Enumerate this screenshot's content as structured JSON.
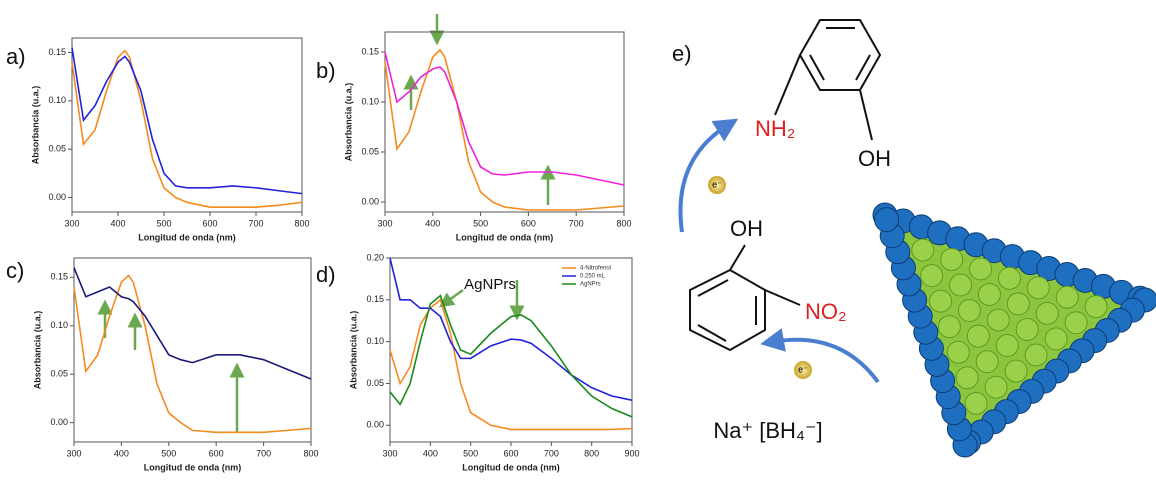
{
  "chart_data": [
    {
      "type": "line",
      "panel_label": "a)",
      "x_label": "Longitud de onda (nm)",
      "y_label": "Absorbancia (u.a.)",
      "x": [
        300,
        325,
        350,
        375,
        400,
        415,
        425,
        450,
        475,
        500,
        525,
        550,
        600,
        650,
        700,
        750,
        800
      ],
      "series": [
        {
          "color": "#f58a1f",
          "values": [
            0.14,
            0.055,
            0.07,
            0.11,
            0.145,
            0.152,
            0.145,
            0.1,
            0.04,
            0.01,
            0.0,
            -0.005,
            -0.01,
            -0.01,
            -0.01,
            -0.008,
            -0.005
          ]
        },
        {
          "color": "#2222dd",
          "values": [
            0.155,
            0.08,
            0.095,
            0.12,
            0.14,
            0.146,
            0.14,
            0.11,
            0.06,
            0.025,
            0.012,
            0.01,
            0.01,
            0.012,
            0.01,
            0.007,
            0.004
          ]
        }
      ],
      "xlim": [
        300,
        800
      ],
      "ylim": [
        -0.015,
        0.165
      ],
      "xticks": [
        300,
        400,
        500,
        600,
        700,
        800
      ],
      "yticks": [
        {
          "value": 0,
          "label": "0.00"
        },
        {
          "value": 0.05,
          "label": "0.05"
        },
        {
          "value": 0.1,
          "label": "0.10"
        },
        {
          "value": 0.15,
          "label": "0.15"
        }
      ]
    },
    {
      "type": "line",
      "panel_label": "b)",
      "x_label": "Longitud de onda (nm)",
      "y_label": "Absorbancia (u.a.)",
      "x": [
        300,
        325,
        350,
        375,
        400,
        415,
        425,
        450,
        475,
        500,
        525,
        550,
        600,
        650,
        700,
        750,
        800
      ],
      "series": [
        {
          "color": "#f58a1f",
          "values": [
            0.14,
            0.053,
            0.07,
            0.11,
            0.145,
            0.152,
            0.145,
            0.1,
            0.04,
            0.01,
            0.0,
            -0.005,
            -0.008,
            -0.008,
            -0.008,
            -0.006,
            -0.004
          ]
        },
        {
          "color": "#ee22dd",
          "values": [
            0.15,
            0.1,
            0.11,
            0.125,
            0.133,
            0.135,
            0.13,
            0.1,
            0.06,
            0.035,
            0.028,
            0.027,
            0.03,
            0.03,
            0.027,
            0.022,
            0.017
          ]
        }
      ],
      "xlim": [
        300,
        800
      ],
      "ylim": [
        -0.01,
        0.17
      ],
      "xticks": [
        300,
        400,
        500,
        600,
        700,
        800
      ],
      "yticks": [
        {
          "value": 0,
          "label": "0.00"
        },
        {
          "value": 0.05,
          "label": "0.05"
        },
        {
          "value": 0.1,
          "label": "0.10"
        },
        {
          "value": 0.15,
          "label": "0.15"
        }
      ]
    },
    {
      "type": "line",
      "panel_label": "c)",
      "x_label": "Longitud de onda (nm)",
      "y_label": "Absorbancia (u.a.)",
      "x": [
        300,
        325,
        350,
        375,
        400,
        415,
        425,
        450,
        475,
        500,
        525,
        550,
        600,
        650,
        700,
        750,
        800
      ],
      "series": [
        {
          "color": "#f58a1f",
          "values": [
            0.14,
            0.053,
            0.07,
            0.11,
            0.145,
            0.152,
            0.145,
            0.1,
            0.04,
            0.01,
            0.0,
            -0.008,
            -0.01,
            -0.01,
            -0.01,
            -0.008,
            -0.006
          ]
        },
        {
          "color": "#1a1a7a",
          "values": [
            0.16,
            0.13,
            0.135,
            0.14,
            0.13,
            0.128,
            0.125,
            0.11,
            0.09,
            0.07,
            0.065,
            0.062,
            0.07,
            0.07,
            0.065,
            0.055,
            0.045
          ]
        }
      ],
      "xlim": [
        300,
        800
      ],
      "ylim": [
        -0.02,
        0.17
      ],
      "xticks": [
        300,
        400,
        500,
        600,
        700,
        800
      ],
      "yticks": [
        {
          "value": 0,
          "label": "0.00"
        },
        {
          "value": 0.05,
          "label": "0.05"
        },
        {
          "value": 0.1,
          "label": "0.10"
        },
        {
          "value": 0.15,
          "label": "0.15"
        }
      ]
    },
    {
      "type": "line",
      "panel_label": "d)",
      "x_label": "Longitud de onda (nm)",
      "y_label": "Absorbancia (u.a.)",
      "annotation": "AgNPrs",
      "legend": "upper right",
      "x": [
        300,
        325,
        350,
        375,
        400,
        425,
        450,
        475,
        500,
        550,
        600,
        625,
        650,
        700,
        750,
        800,
        850,
        900
      ],
      "series": [
        {
          "name": "4-Nitrofenol",
          "color": "#f58a1f",
          "values": [
            0.09,
            0.05,
            0.07,
            0.12,
            0.14,
            0.15,
            0.11,
            0.05,
            0.015,
            0.0,
            -0.005,
            -0.005,
            -0.005,
            -0.005,
            -0.005,
            -0.005,
            -0.005,
            -0.004
          ]
        },
        {
          "name": "0.250 mL",
          "color": "#2222dd",
          "values": [
            0.2,
            0.15,
            0.15,
            0.14,
            0.14,
            0.13,
            0.1,
            0.08,
            0.08,
            0.095,
            0.103,
            0.102,
            0.098,
            0.08,
            0.06,
            0.045,
            0.035,
            0.03
          ]
        },
        {
          "name": "AgNPrs",
          "color": "#1a8a1a",
          "values": [
            0.04,
            0.025,
            0.05,
            0.1,
            0.145,
            0.155,
            0.12,
            0.09,
            0.085,
            0.11,
            0.13,
            0.132,
            0.125,
            0.095,
            0.06,
            0.035,
            0.02,
            0.01
          ]
        }
      ],
      "xlim": [
        300,
        900
      ],
      "ylim": [
        -0.02,
        0.2
      ],
      "xticks": [
        300,
        400,
        500,
        600,
        700,
        800,
        900
      ],
      "yticks": [
        {
          "value": 0,
          "label": "0.00"
        },
        {
          "value": 0.05,
          "label": "0.05"
        },
        {
          "value": 0.1,
          "label": "0.10"
        },
        {
          "value": 0.15,
          "label": "0.15"
        },
        {
          "value": 0.2,
          "label": "0.20"
        }
      ]
    }
  ],
  "diagram": {
    "panel_label": "e)",
    "product_amine": "NH₂",
    "product_hydroxyl": "OH",
    "reactant_hydroxyl": "OH",
    "reactant_nitro": "NO₂",
    "electron_top": "e⁻",
    "electron_bottom": "e⁻",
    "reductant": "Na⁺ [BH₄⁻]"
  }
}
